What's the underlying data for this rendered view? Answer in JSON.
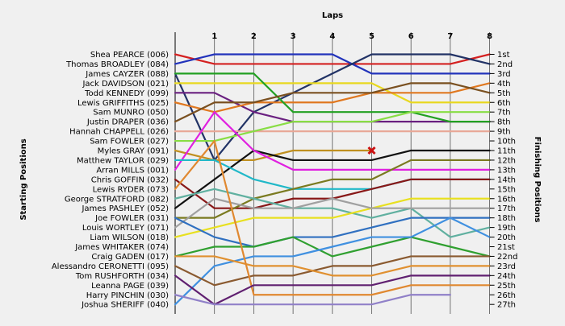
{
  "chart_data": {
    "type": "line",
    "title": "Laps",
    "xlabel": "Laps",
    "ylabel_left": "Starting Positions",
    "ylabel_right": "Finishing Positions",
    "laps": [
      1,
      2,
      3,
      4,
      5,
      6,
      7,
      8
    ],
    "lap_labels": [
      "1",
      "2",
      "3",
      "4",
      "5",
      "6",
      "7",
      "8"
    ],
    "finishing_labels": [
      "1st",
      "2nd",
      "3rd",
      "4th",
      "5th",
      "6th",
      "7th",
      "8th",
      "9th",
      "10th",
      "11th",
      "12th",
      "13th",
      "14th",
      "15th",
      "16th",
      "17th",
      "18th",
      "19th",
      "20th",
      "21st",
      "22nd",
      "23rd",
      "24th",
      "25th",
      "26th",
      "27th"
    ],
    "retired_marker": {
      "driver": "Myles GRAY (091)",
      "lap": 5,
      "position": 11
    },
    "series": [
      {
        "name": "Shea PEARCE (006)",
        "color": "#d42020",
        "positions": [
          1,
          2,
          2,
          2,
          2,
          2,
          2,
          2,
          1
        ]
      },
      {
        "name": "Thomas BROADLEY (084)",
        "color": "#2233bb",
        "positions": [
          2,
          1,
          1,
          1,
          1,
          3,
          3,
          3,
          3
        ]
      },
      {
        "name": "James CAYZER (088)",
        "color": "#223366",
        "positions": [
          3,
          12,
          7,
          5,
          3,
          1,
          1,
          1,
          2
        ]
      },
      {
        "name": "Jack DAVIDSON (021)",
        "color": "#e8d820",
        "positions": [
          4,
          4,
          4,
          4,
          4,
          4,
          6,
          6,
          6
        ]
      },
      {
        "name": "Todd KENNEDY (099)",
        "color": "#6a2080",
        "positions": [
          5,
          5,
          7,
          8,
          8,
          8,
          8,
          8,
          8
        ]
      },
      {
        "name": "Lewis GRIFFITHS (025)",
        "color": "#e07820",
        "positions": [
          6,
          7,
          6,
          6,
          6,
          5,
          5,
          5,
          4
        ]
      },
      {
        "name": "Sam MUNRO (050)",
        "color": "#22a022",
        "positions": [
          3,
          3,
          3,
          7,
          7,
          7,
          7,
          8,
          8
        ]
      },
      {
        "name": "Justin DRAPER (036)",
        "color": "#7a5020",
        "positions": [
          8,
          6,
          6,
          5,
          5,
          5,
          4,
          4,
          5
        ]
      },
      {
        "name": "Hannah CHAPPELL (026)",
        "color": "#e8a898",
        "positions": [
          9,
          9,
          9,
          9,
          9,
          9,
          9,
          9,
          9
        ]
      },
      {
        "name": "Sam FOWLER (027)",
        "color": "#88dd44",
        "positions": [
          10,
          10,
          9,
          8,
          8,
          8,
          7,
          7,
          7
        ]
      },
      {
        "name": "Myles GRAY (091)",
        "color": "#c09020",
        "positions": [
          11,
          12,
          12,
          11,
          11,
          11
        ]
      },
      {
        "name": "Matthew TAYLOR (029)",
        "color": "#111111",
        "positions": [
          17,
          14,
          11,
          12,
          12,
          12,
          11,
          11,
          11
        ]
      },
      {
        "name": "Arran MILLS (001)",
        "color": "#e020e0",
        "positions": [
          13,
          7,
          11,
          13,
          13,
          13,
          13,
          13,
          13
        ]
      },
      {
        "name": "Chris GOFFIN (032)",
        "color": "#20b8c8",
        "positions": [
          12,
          12,
          14,
          15,
          15,
          15,
          14,
          14,
          14
        ]
      },
      {
        "name": "Lewis RYDER (073)",
        "color": "#881818",
        "positions": [
          14,
          17,
          17,
          16,
          16,
          15,
          14,
          14,
          14
        ]
      },
      {
        "name": "George STRATFORD (082)",
        "color": "#7a7a20",
        "positions": [
          18,
          18,
          16,
          15,
          14,
          14,
          12,
          12,
          12
        ]
      },
      {
        "name": "James PASHLEY (052)",
        "color": "#60b0a0",
        "positions": [
          16,
          15,
          16,
          17,
          17,
          18,
          17,
          20,
          19
        ]
      },
      {
        "name": "Joe FOWLER (031)",
        "color": "#e8e020",
        "positions": [
          20,
          19,
          18,
          18,
          18,
          17,
          16,
          16,
          16
        ]
      },
      {
        "name": "Louis WORTLEY (071)",
        "color": "#a0a0a0",
        "positions": [
          19,
          16,
          17,
          17,
          16,
          17,
          17,
          17,
          17
        ]
      },
      {
        "name": "Liam WILSON (018)",
        "color": "#3070c0",
        "positions": [
          18,
          20,
          21,
          20,
          20,
          19,
          18,
          18,
          18
        ]
      },
      {
        "name": "James WHITAKER (074)",
        "color": "#30a030",
        "positions": [
          22,
          21,
          21,
          20,
          22,
          21,
          20,
          21,
          22
        ]
      },
      {
        "name": "Craig GADEN (017)",
        "color": "#4090e0",
        "positions": [
          27,
          23,
          22,
          22,
          21,
          20,
          20,
          18,
          20
        ]
      },
      {
        "name": "Alessandro CERONETTI (095)",
        "color": "#8a5a30",
        "positions": [
          23,
          25,
          24,
          24,
          23,
          23,
          22,
          22,
          22
        ]
      },
      {
        "name": "Tom RUSHFORTH (034)",
        "color": "#e09030",
        "positions": [
          22,
          22,
          23,
          23,
          24,
          24,
          23,
          23,
          23
        ]
      },
      {
        "name": "Leanna PAGE (039)",
        "color": "#e08830",
        "positions": [
          15,
          10,
          26,
          26,
          26,
          26,
          25,
          25,
          25
        ]
      },
      {
        "name": "Harry PINCHIN (030)",
        "color": "#602070",
        "positions": [
          24,
          27,
          25,
          25,
          25,
          25,
          24,
          24,
          24
        ]
      },
      {
        "name": "Joshua SHERIFF (040)",
        "color": "#9080c8",
        "positions": [
          26,
          27,
          27,
          27,
          27,
          27,
          26,
          26
        ]
      }
    ]
  }
}
